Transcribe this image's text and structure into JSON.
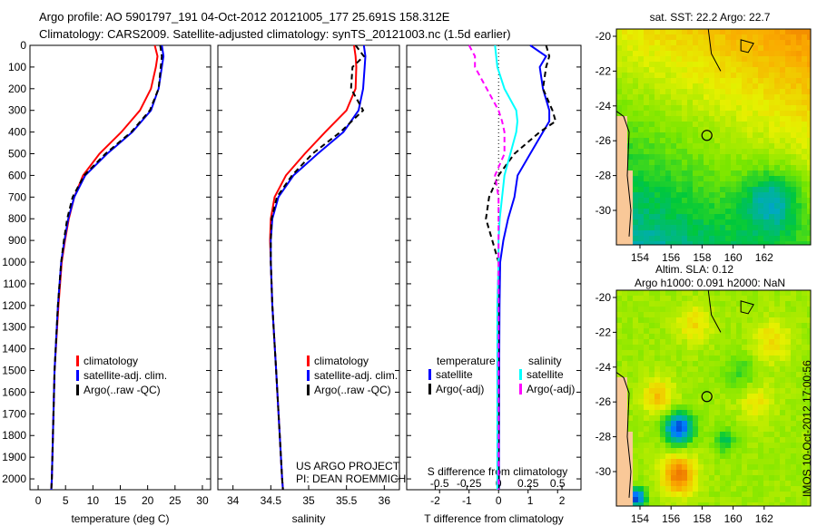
{
  "title": {
    "line1": "Argo profile: AO 5901797_191 04-Oct-2012 20121005_177 25.691S 158.312E",
    "line2": "Climatology: CARS2009. Satellite-adjusted climatology: synTS_20121003.nc (1.5d earlier)"
  },
  "colors": {
    "climatology": "#ff0000",
    "satellite": "#0000ff",
    "argo": "#000000",
    "sal_satellite": "#00ffff",
    "sal_argo": "#ff00ff"
  },
  "chart_data": [
    {
      "type": "line",
      "name": "temperature",
      "xlabel": "temperature (deg C)",
      "xlim": [
        -1.5,
        31.5
      ],
      "xticks": [
        0,
        5,
        10,
        15,
        20,
        25,
        30
      ],
      "ylim": [
        0,
        2050
      ],
      "yticks": [
        0,
        100,
        200,
        300,
        400,
        500,
        600,
        700,
        800,
        900,
        1000,
        1100,
        1200,
        1300,
        1400,
        1500,
        1600,
        1700,
        1800,
        1900,
        2000
      ],
      "depth": [
        0,
        50,
        100,
        200,
        300,
        400,
        500,
        600,
        700,
        800,
        900,
        1000,
        1200,
        1500,
        2000,
        2050
      ],
      "legend": [
        "climatology",
        "satellite-adj. clim.",
        "Argo(..raw -QC)"
      ],
      "series": [
        {
          "name": "climatology",
          "values": [
            21.3,
            21.8,
            21.5,
            20.6,
            18.6,
            15.2,
            11.2,
            8.2,
            6.6,
            5.6,
            4.9,
            4.3,
            3.7,
            3.0,
            2.5,
            2.4
          ]
        },
        {
          "name": "satellite-adj. clim.",
          "values": [
            22.6,
            22.9,
            22.6,
            22,
            20.6,
            17.2,
            12.6,
            8.6,
            6.6,
            5.5,
            4.8,
            4.2,
            3.6,
            3.0,
            2.5,
            2.4
          ]
        },
        {
          "name": "Argo(..raw -QC)",
          "values": [
            22.3,
            22.6,
            22.4,
            22,
            20.4,
            17,
            12.3,
            8.4,
            6.3,
            5.3,
            4.7,
            4.2,
            3.6,
            3.0,
            2.5,
            2.4
          ]
        }
      ]
    },
    {
      "type": "line",
      "name": "salinity",
      "xlabel": "salinity",
      "xlim": [
        33.8,
        36.2
      ],
      "xticks": [
        34,
        34.5,
        35,
        35.5,
        36
      ],
      "depth": [
        0,
        50,
        100,
        200,
        300,
        400,
        500,
        600,
        700,
        800,
        900,
        1000,
        1200,
        1500,
        2000,
        2050
      ],
      "legend": [
        "climatology",
        "satellite-adj. clim.",
        "Argo(..raw -QC)"
      ],
      "annotation": [
        "US ARGO PROJECT",
        "PI: DEAN ROEMMICH"
      ],
      "series": [
        {
          "name": "climatology",
          "values": [
            35.6,
            35.62,
            35.63,
            35.62,
            35.5,
            35.22,
            34.95,
            34.7,
            34.55,
            34.5,
            34.49,
            34.5,
            34.52,
            34.57,
            34.65,
            34.66
          ]
        },
        {
          "name": "satellite-adj. clim.",
          "values": [
            35.73,
            35.75,
            35.74,
            35.72,
            35.66,
            35.46,
            35.12,
            34.8,
            34.6,
            34.52,
            34.5,
            34.5,
            34.52,
            34.57,
            34.65,
            34.66
          ]
        },
        {
          "name": "Argo(..raw -QC)",
          "values": [
            35.62,
            35.73,
            35.58,
            35.56,
            35.72,
            35.42,
            35.05,
            34.78,
            34.58,
            34.51,
            34.5,
            34.5,
            34.52,
            34.57,
            34.65,
            34.66
          ]
        }
      ]
    },
    {
      "type": "line",
      "name": "difference",
      "xlabel": "T difference from climatology",
      "x2label": "S difference from climatology",
      "xlim": [
        -2.9,
        2.6
      ],
      "xticks": [
        -2,
        -1,
        0,
        1,
        2
      ],
      "x2ticks": [
        "-0.5",
        "-0.25",
        "0",
        "0.25",
        "0.5"
      ],
      "depth": [
        0,
        50,
        100,
        200,
        300,
        350,
        400,
        500,
        600,
        700,
        800,
        900,
        1000,
        1200,
        1500,
        2000,
        2050
      ],
      "legend": {
        "temperature": "temperature",
        "salinity": "salinity",
        "items": [
          "satellite",
          "Argo(-adj)",
          "satellite",
          "Argo(-adj)"
        ]
      },
      "series": [
        {
          "name": "T satellite",
          "values": [
            1.0,
            1.5,
            1.3,
            1.4,
            1.6,
            1.6,
            1.4,
            1.0,
            0.6,
            0.5,
            0.3,
            0.15,
            0.05,
            0.03,
            0.02,
            0.01,
            0.01
          ]
        },
        {
          "name": "T Argo(-adj)",
          "values": [
            1.5,
            1.6,
            1.5,
            1.4,
            1.7,
            1.8,
            1.3,
            0.5,
            0.0,
            -0.3,
            -0.4,
            -0.2,
            0.0,
            0.0,
            0.0,
            0.0,
            0.0
          ]
        },
        {
          "name": "S satellite",
          "values": [
            -0.03,
            -0.02,
            -0.01,
            0.05,
            0.15,
            0.16,
            0.15,
            0.1,
            0.05,
            0.03,
            0.01,
            0.0,
            0.0,
            -0.01,
            -0.01,
            -0.01,
            -0.01
          ]
        },
        {
          "name": "S Argo(-adj)",
          "values": [
            -0.25,
            -0.2,
            -0.2,
            -0.1,
            0.0,
            0.03,
            0.05,
            0.05,
            -0.03,
            0.0,
            0.0,
            0.0,
            0.0,
            0.0,
            0.0,
            0.0,
            0.0
          ]
        }
      ]
    }
  ],
  "maps": [
    {
      "title": "sat. SST: 22.2 Argo: 22.7",
      "lon_ticks": [
        "154",
        "156",
        "158",
        "160",
        "162"
      ],
      "lat_ticks": [
        "-20",
        "-22",
        "-24",
        "-26",
        "-28",
        "-30"
      ],
      "profile_lon": 158.312,
      "profile_lat": -25.691
    },
    {
      "title1": "Altim. SLA: 0.12",
      "title2": "Argo h1000: 0.091 h2000: NaN",
      "lon_ticks": [
        "154",
        "156",
        "158",
        "160",
        "162"
      ],
      "lat_ticks": [
        "-20",
        "-22",
        "-24",
        "-26",
        "-28",
        "-30"
      ],
      "profile_lon": 158.312,
      "profile_lat": -25.691
    }
  ],
  "footer": "IMOS 10-Oct-2012 17:00:56"
}
